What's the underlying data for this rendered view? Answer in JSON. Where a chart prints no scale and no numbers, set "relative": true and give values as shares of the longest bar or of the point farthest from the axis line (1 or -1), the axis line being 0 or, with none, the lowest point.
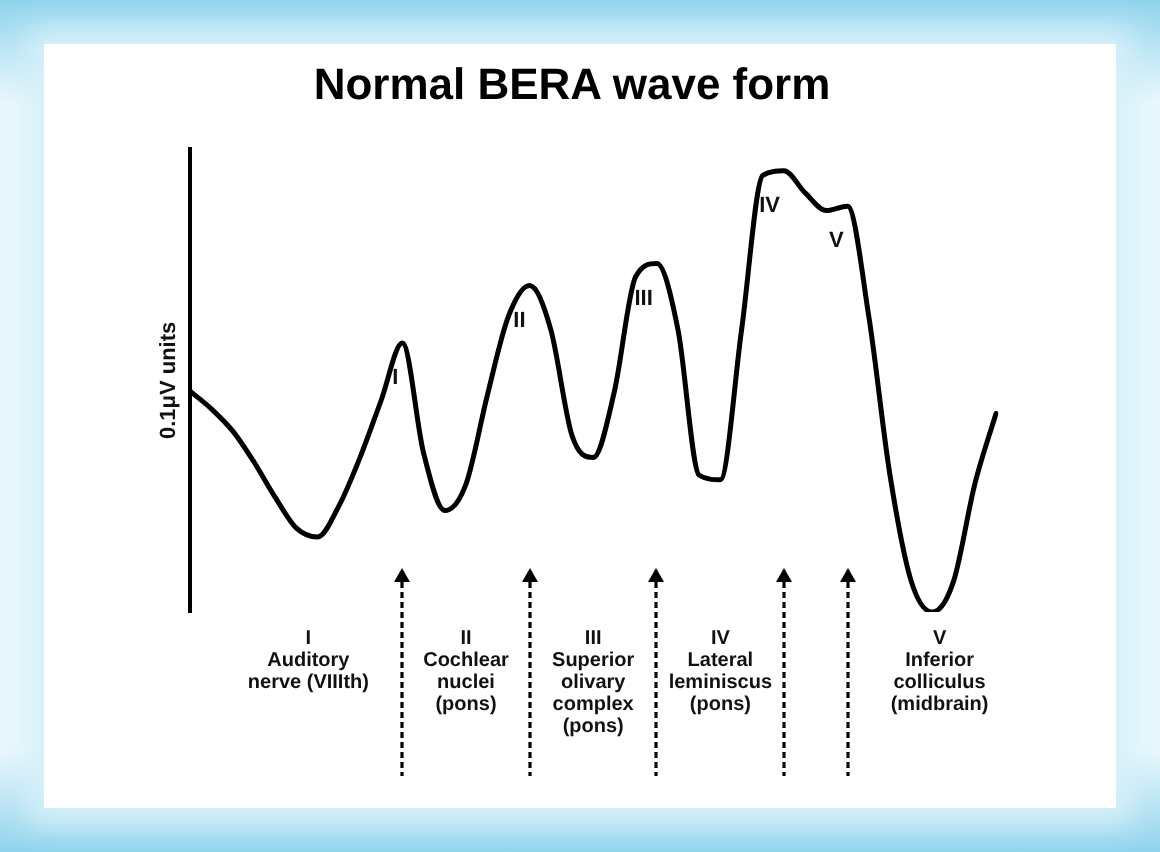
{
  "chart_data": {
    "type": "line",
    "title": "Normal BERA wave form",
    "ylabel": "0.1μV units",
    "relative": true,
    "tick_labels": false,
    "legend": false,
    "marker": "none",
    "line_style": "solid",
    "categories": [
      null,
      null,
      null,
      null,
      null,
      null,
      null,
      null,
      null,
      null,
      null,
      null,
      null,
      null,
      null,
      null,
      null,
      null,
      null,
      null,
      null,
      null,
      null,
      null,
      null,
      null,
      null,
      null,
      null,
      null,
      null,
      null,
      null,
      null,
      null,
      null,
      null,
      null,
      null
    ],
    "series": [
      {
        "color": "#000000",
        "values": [
          0.5,
          0.46,
          0.41,
          0.34,
          0.26,
          0.19,
          0.17,
          0.24,
          0.35,
          0.48,
          0.61,
          0.36,
          0.23,
          0.29,
          0.49,
          0.67,
          0.74,
          0.64,
          0.4,
          0.35,
          0.5,
          0.76,
          0.79,
          0.64,
          0.31,
          0.3,
          0.64,
          0.99,
          1,
          0.95,
          0.91,
          0.92,
          0.67,
          0.31,
          0.07,
          0,
          0.07,
          0.29,
          0.45
        ]
      }
    ],
    "annotations": [
      {
        "text": "I",
        "y": 0.61
      },
      {
        "text": "II",
        "y": 0.74
      },
      {
        "text": "III",
        "y": 0.79
      },
      {
        "text": "IV",
        "y": 1
      },
      {
        "text": "V",
        "y": 0.92
      },
      "I\nAuditory\nnerve (VIIIth)",
      "II\nCochlear\nnuclei\n(pons)",
      "III\nSuperior\nolivary\ncomplex\n(pons)",
      "IV\nLateral\nleminiscus\n(pons)",
      "V\nInferior\ncolliculus\n(midbrain)"
    ]
  }
}
